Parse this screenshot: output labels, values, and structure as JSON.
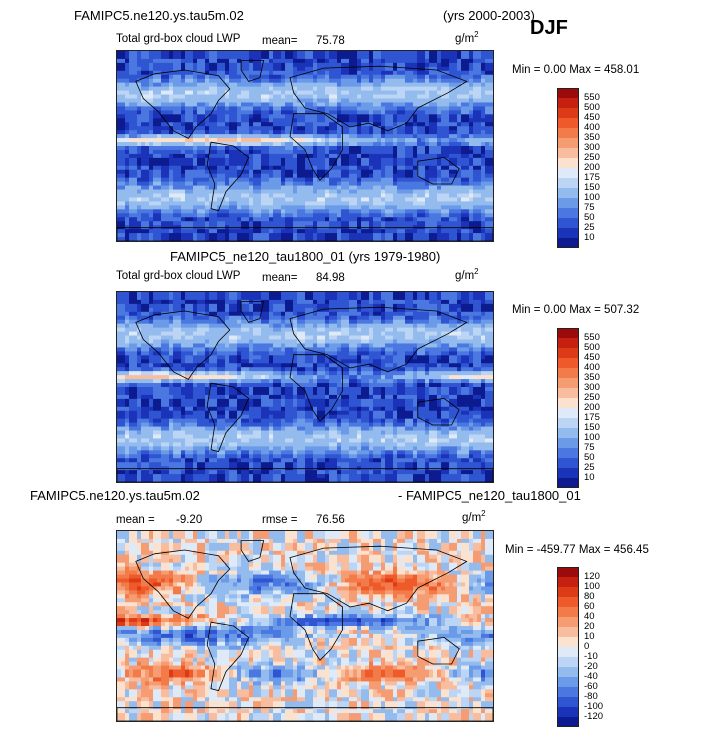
{
  "header": {
    "case1": "FAMIPC5.ne120.ys.tau5m.02",
    "years1": "(yrs 2000-2003)",
    "season": "DJF",
    "case2_title": "FAMIPC5_ne120_tau1800_01 (yrs 1979-1980)",
    "diff_left": "FAMIPC5.ne120.ys.tau5m.02",
    "diff_right": "- FAMIPC5_ne120_tau1800_01"
  },
  "panels": [
    {
      "variable": "Total grd-box cloud LWP",
      "mean_label": "mean=",
      "mean_value": "75.78",
      "units": "g/m",
      "units_sup": "2",
      "minmax": "Min =   0.00 Max = 458.01"
    },
    {
      "variable": "Total grd-box cloud LWP",
      "mean_label": "mean=",
      "mean_value": "84.98",
      "units": "g/m",
      "units_sup": "2",
      "minmax": "Min =   0.00 Max = 507.32"
    },
    {
      "mean_label": "mean =",
      "mean_value": "-9.20",
      "rmse_label": "rmse =",
      "rmse_value": "76.56",
      "units": "g/m",
      "units_sup": "2",
      "minmax": "Min = -459.77 Max = 456.45"
    }
  ],
  "colorbars": {
    "abs_levels": [
      "550",
      "500",
      "450",
      "400",
      "350",
      "300",
      "250",
      "200",
      "175",
      "150",
      "100",
      "75",
      "50",
      "25",
      "10"
    ],
    "abs_colors": [
      "#9b0b0b",
      "#c62010",
      "#dd3b17",
      "#ee5a2a",
      "#f37b49",
      "#f69c73",
      "#f8bd9f",
      "#fbe2cf",
      "#dfeaf8",
      "#bcd5f4",
      "#94bbee",
      "#6b9ae8",
      "#4a78e0",
      "#2f55d2",
      "#1a33b8",
      "#0d1b90"
    ],
    "diff_levels": [
      "120",
      "100",
      "80",
      "60",
      "40",
      "20",
      "10",
      "0",
      "-10",
      "-20",
      "-40",
      "-60",
      "-80",
      "-100",
      "-120"
    ],
    "diff_colors": [
      "#9b0b0b",
      "#c62010",
      "#dd3b17",
      "#ee5a2a",
      "#f37b49",
      "#f69c73",
      "#f8bd9f",
      "#fbe2cf",
      "#dfeaf8",
      "#bcd5f4",
      "#94bbee",
      "#6b9ae8",
      "#4a78e0",
      "#2f55d2",
      "#1a33b8",
      "#0d1b90"
    ]
  }
}
